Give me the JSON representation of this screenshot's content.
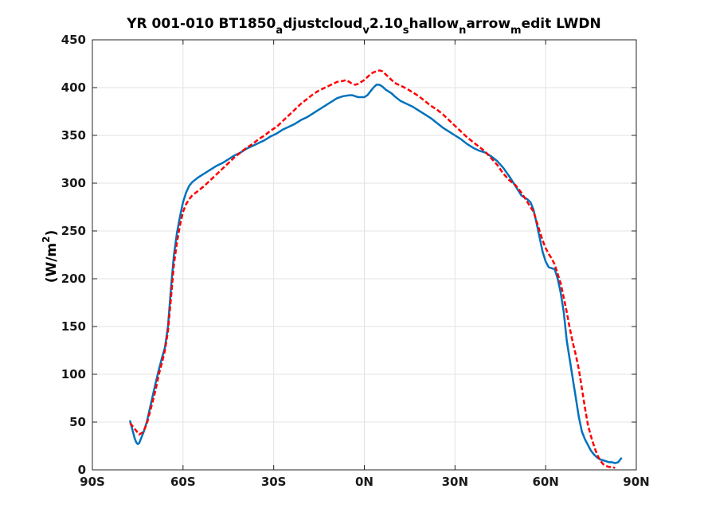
{
  "chart_data": {
    "type": "line",
    "title": {
      "parts": [
        {
          "text": "YR 001-010 BT1850",
          "sub": false
        },
        {
          "text": "a",
          "sub": true
        },
        {
          "text": "djustcloud",
          "sub": false
        },
        {
          "text": "v",
          "sub": true
        },
        {
          "text": "2.10",
          "sub": false
        },
        {
          "text": "s",
          "sub": true
        },
        {
          "text": "hallow",
          "sub": false
        },
        {
          "text": "n",
          "sub": true
        },
        {
          "text": "arrow",
          "sub": false
        },
        {
          "text": "m",
          "sub": true
        },
        {
          "text": "edit LWDN",
          "sub": false
        }
      ]
    },
    "ylabel": {
      "main": "(W/m",
      "sup": "2",
      "end": ")"
    },
    "xlabel": "",
    "xlim": [
      -90,
      90
    ],
    "ylim": [
      0,
      450
    ],
    "grid": true,
    "xticks": [
      {
        "value": -90,
        "label": "90S"
      },
      {
        "value": -60,
        "label": "60S"
      },
      {
        "value": -30,
        "label": "30S"
      },
      {
        "value": 0,
        "label": "0N"
      },
      {
        "value": 30,
        "label": "30N"
      },
      {
        "value": 60,
        "label": "60N"
      },
      {
        "value": 90,
        "label": "90N"
      }
    ],
    "yticks": [
      {
        "value": 0,
        "label": "0"
      },
      {
        "value": 50,
        "label": "50"
      },
      {
        "value": 100,
        "label": "100"
      },
      {
        "value": 150,
        "label": "150"
      },
      {
        "value": 200,
        "label": "200"
      },
      {
        "value": 250,
        "label": "250"
      },
      {
        "value": 300,
        "label": "300"
      },
      {
        "value": 350,
        "label": "350"
      },
      {
        "value": 400,
        "label": "400"
      },
      {
        "value": 450,
        "label": "450"
      }
    ],
    "series": [
      {
        "color": "#0072BD",
        "style": "solid",
        "points": [
          [
            -77.5,
            51
          ],
          [
            -77,
            45
          ],
          [
            -76.5,
            39
          ],
          [
            -76,
            33
          ],
          [
            -75.5,
            29
          ],
          [
            -75,
            27
          ],
          [
            -74.5,
            28
          ],
          [
            -74,
            32
          ],
          [
            -73.5,
            36
          ],
          [
            -73,
            40
          ],
          [
            -72,
            50
          ],
          [
            -71,
            64
          ],
          [
            -70,
            78
          ],
          [
            -69,
            92
          ],
          [
            -68,
            105
          ],
          [
            -67,
            117
          ],
          [
            -66,
            128
          ],
          [
            -65,
            150
          ],
          [
            -64,
            190
          ],
          [
            -63,
            225
          ],
          [
            -62,
            248
          ],
          [
            -61,
            265
          ],
          [
            -60,
            280
          ],
          [
            -59,
            290
          ],
          [
            -58,
            297
          ],
          [
            -57,
            301
          ],
          [
            -55,
            306
          ],
          [
            -53,
            310
          ],
          [
            -51,
            314
          ],
          [
            -49,
            318
          ],
          [
            -47,
            321
          ],
          [
            -45,
            325
          ],
          [
            -43,
            329
          ],
          [
            -41,
            332
          ],
          [
            -39,
            336
          ],
          [
            -37,
            339
          ],
          [
            -35,
            342
          ],
          [
            -33,
            345
          ],
          [
            -31,
            349
          ],
          [
            -29,
            352
          ],
          [
            -27,
            356
          ],
          [
            -25,
            359
          ],
          [
            -23,
            362
          ],
          [
            -21,
            366
          ],
          [
            -19,
            369
          ],
          [
            -17,
            373
          ],
          [
            -15,
            377
          ],
          [
            -13,
            381
          ],
          [
            -11,
            385
          ],
          [
            -9,
            389
          ],
          [
            -7,
            391
          ],
          [
            -5,
            392
          ],
          [
            -4,
            392
          ],
          [
            -3,
            391
          ],
          [
            -2,
            390
          ],
          [
            -1,
            390
          ],
          [
            0,
            390
          ],
          [
            1,
            392
          ],
          [
            2,
            396
          ],
          [
            3,
            400
          ],
          [
            4,
            403
          ],
          [
            5,
            403
          ],
          [
            6,
            401
          ],
          [
            7,
            398
          ],
          [
            8,
            396
          ],
          [
            9,
            394
          ],
          [
            10,
            391
          ],
          [
            12,
            386
          ],
          [
            14,
            383
          ],
          [
            16,
            380
          ],
          [
            18,
            376
          ],
          [
            20,
            372
          ],
          [
            22,
            368
          ],
          [
            24,
            363
          ],
          [
            26,
            358
          ],
          [
            28,
            354
          ],
          [
            30,
            350
          ],
          [
            32,
            346
          ],
          [
            34,
            341
          ],
          [
            36,
            337
          ],
          [
            38,
            334
          ],
          [
            40,
            332
          ],
          [
            42,
            328
          ],
          [
            44,
            323
          ],
          [
            46,
            316
          ],
          [
            48,
            307
          ],
          [
            50,
            297
          ],
          [
            52,
            287
          ],
          [
            54,
            283
          ],
          [
            55,
            280
          ],
          [
            56,
            272
          ],
          [
            57,
            258
          ],
          [
            58,
            243
          ],
          [
            59,
            228
          ],
          [
            60,
            218
          ],
          [
            61,
            212
          ],
          [
            62,
            211
          ],
          [
            63,
            210
          ],
          [
            64,
            200
          ],
          [
            65,
            185
          ],
          [
            66,
            165
          ],
          [
            67,
            135
          ],
          [
            68,
            115
          ],
          [
            69,
            95
          ],
          [
            70,
            75
          ],
          [
            71,
            55
          ],
          [
            72,
            40
          ],
          [
            73,
            32
          ],
          [
            74,
            26
          ],
          [
            75,
            20
          ],
          [
            76,
            16
          ],
          [
            77,
            13
          ],
          [
            78,
            11
          ],
          [
            79,
            10
          ],
          [
            80,
            9
          ],
          [
            81,
            8
          ],
          [
            82,
            8
          ],
          [
            83,
            7
          ],
          [
            84,
            8
          ],
          [
            85,
            12
          ]
        ]
      },
      {
        "color": "#FF0000",
        "style": "dashed",
        "points": [
          [
            -77.5,
            49
          ],
          [
            -77,
            47
          ],
          [
            -76.5,
            45
          ],
          [
            -76,
            43
          ],
          [
            -75.5,
            41
          ],
          [
            -75,
            39
          ],
          [
            -74.5,
            37
          ],
          [
            -74,
            38
          ],
          [
            -73.5,
            39
          ],
          [
            -73,
            41
          ],
          [
            -72,
            48
          ],
          [
            -71,
            60
          ],
          [
            -70,
            72
          ],
          [
            -69,
            85
          ],
          [
            -68,
            100
          ],
          [
            -67,
            112
          ],
          [
            -66,
            125
          ],
          [
            -65,
            145
          ],
          [
            -64,
            180
          ],
          [
            -63,
            215
          ],
          [
            -62,
            238
          ],
          [
            -61,
            256
          ],
          [
            -60,
            270
          ],
          [
            -59,
            278
          ],
          [
            -58,
            283
          ],
          [
            -57,
            287
          ],
          [
            -55,
            292
          ],
          [
            -53,
            297
          ],
          [
            -51,
            303
          ],
          [
            -49,
            309
          ],
          [
            -47,
            315
          ],
          [
            -45,
            321
          ],
          [
            -43,
            327
          ],
          [
            -41,
            332
          ],
          [
            -39,
            337
          ],
          [
            -37,
            341
          ],
          [
            -35,
            346
          ],
          [
            -33,
            350
          ],
          [
            -31,
            355
          ],
          [
            -29,
            359
          ],
          [
            -27,
            365
          ],
          [
            -25,
            371
          ],
          [
            -23,
            377
          ],
          [
            -21,
            383
          ],
          [
            -19,
            388
          ],
          [
            -17,
            393
          ],
          [
            -15,
            397
          ],
          [
            -13,
            400
          ],
          [
            -11,
            403
          ],
          [
            -9,
            406
          ],
          [
            -7,
            407
          ],
          [
            -6,
            408
          ],
          [
            -5,
            406
          ],
          [
            -4,
            404
          ],
          [
            -3,
            403
          ],
          [
            -2,
            404
          ],
          [
            -1,
            406
          ],
          [
            0,
            408
          ],
          [
            1,
            411
          ],
          [
            2,
            414
          ],
          [
            3,
            416
          ],
          [
            4,
            417
          ],
          [
            5,
            418
          ],
          [
            6,
            417
          ],
          [
            7,
            414
          ],
          [
            8,
            411
          ],
          [
            9,
            408
          ],
          [
            10,
            405
          ],
          [
            12,
            402
          ],
          [
            14,
            399
          ],
          [
            16,
            395
          ],
          [
            18,
            391
          ],
          [
            20,
            386
          ],
          [
            22,
            381
          ],
          [
            24,
            377
          ],
          [
            26,
            372
          ],
          [
            28,
            366
          ],
          [
            30,
            360
          ],
          [
            32,
            354
          ],
          [
            34,
            348
          ],
          [
            36,
            343
          ],
          [
            38,
            338
          ],
          [
            40,
            333
          ],
          [
            42,
            326
          ],
          [
            44,
            319
          ],
          [
            46,
            310
          ],
          [
            48,
            303
          ],
          [
            50,
            298
          ],
          [
            52,
            290
          ],
          [
            54,
            280
          ],
          [
            56,
            270
          ],
          [
            57,
            260
          ],
          [
            58,
            250
          ],
          [
            59,
            240
          ],
          [
            60,
            232
          ],
          [
            61,
            226
          ],
          [
            62,
            221
          ],
          [
            63,
            215
          ],
          [
            64,
            205
          ],
          [
            65,
            195
          ],
          [
            66,
            180
          ],
          [
            67,
            165
          ],
          [
            68,
            148
          ],
          [
            69,
            133
          ],
          [
            70,
            120
          ],
          [
            71,
            105
          ],
          [
            72,
            85
          ],
          [
            73,
            65
          ],
          [
            74,
            47
          ],
          [
            75,
            35
          ],
          [
            76,
            25
          ],
          [
            77,
            16
          ],
          [
            78,
            10
          ],
          [
            79,
            6
          ],
          [
            80,
            4
          ],
          [
            81,
            3
          ],
          [
            82,
            3
          ],
          [
            83,
            2
          ]
        ]
      }
    ]
  }
}
